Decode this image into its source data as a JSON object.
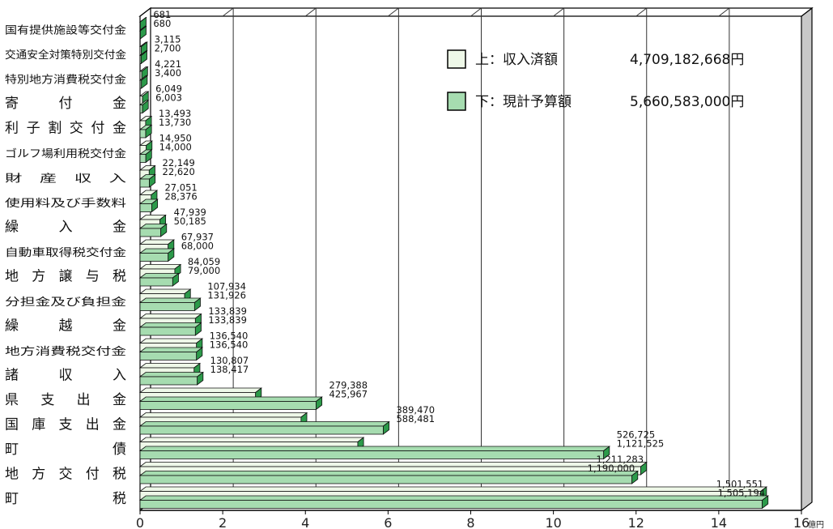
{
  "chart_data": {
    "type": "bar",
    "orientation": "horizontal",
    "bar_style": "3d",
    "unit_label": "億円",
    "xlim": [
      0,
      16
    ],
    "xticks": [
      "0",
      "2",
      "4",
      "6",
      "8",
      "10",
      "12",
      "14",
      "16"
    ],
    "grid": true,
    "legend_position": "top-right",
    "colors": {
      "received": "#eef8e8",
      "budget": "#a6dcb0",
      "side": "#2c9a4a",
      "plot_right_wall": "#c8c8c8",
      "frame": "#000000"
    },
    "legend": [
      {
        "series": "received",
        "position": "上",
        "name": "収入済額",
        "total": "4,709,182,668円"
      },
      {
        "series": "budget",
        "position": "下",
        "name": "現計予算額",
        "total": "5,660,583,000円"
      }
    ],
    "categories": [
      {
        "name": "国有提供施設等交付金",
        "received": 681,
        "budget": 680
      },
      {
        "name": "交通安全対策特別交付金",
        "received": 3115,
        "budget": 2700
      },
      {
        "name": "特別地方消費税交付金",
        "received": 4221,
        "budget": 3400
      },
      {
        "name": "寄　付　金",
        "received": 6049,
        "budget": 6003
      },
      {
        "name": "利子割交付金",
        "received": 13493,
        "budget": 13730
      },
      {
        "name": "ゴルフ場利用税交付金",
        "received": 14950,
        "budget": 14000
      },
      {
        "name": "財　産　収　入",
        "received": 22149,
        "budget": 22620
      },
      {
        "name": "使用料及び手数料",
        "received": 27051,
        "budget": 28376
      },
      {
        "name": "繰　入　金",
        "received": 47939,
        "budget": 50185
      },
      {
        "name": "自動車取得税交付金",
        "received": 67937,
        "budget": 68000
      },
      {
        "name": "地方譲与税",
        "received": 84059,
        "budget": 79000
      },
      {
        "name": "分担金及び負担金",
        "received": 107934,
        "budget": 131926
      },
      {
        "name": "繰　越　金",
        "received": 133839,
        "budget": 133839
      },
      {
        "name": "地方消費税交付金",
        "received": 136540,
        "budget": 136540
      },
      {
        "name": "諸　収　入",
        "received": 130807,
        "budget": 138417
      },
      {
        "name": "県支出金",
        "received": 279388,
        "budget": 425967
      },
      {
        "name": "国庫支出金",
        "received": 389470,
        "budget": 588481
      },
      {
        "name": "町　　債",
        "received": 526725,
        "budget": 1121525
      },
      {
        "name": "地方交付税",
        "received": 1211283,
        "budget": 1190000
      },
      {
        "name": "町　　税",
        "received": 1501551,
        "budget": 1505194
      }
    ],
    "value_labels": [
      {
        "text": "681"
      },
      {
        "text": "680"
      },
      {
        "text": "3,115"
      },
      {
        "text": "2,700"
      },
      {
        "text": "4,221"
      },
      {
        "text": "3,400"
      },
      {
        "text": "6,049"
      },
      {
        "text": "6,003"
      },
      {
        "text": "13,493"
      },
      {
        "text": "13,730"
      },
      {
        "text": "14,950"
      },
      {
        "text": "14,000"
      },
      {
        "text": "22,149"
      },
      {
        "text": "22,620"
      },
      {
        "text": "27,051"
      },
      {
        "text": "28,376"
      },
      {
        "text": "47,939"
      },
      {
        "text": "50,185"
      },
      {
        "text": "67,937"
      },
      {
        "text": "68,000"
      },
      {
        "text": "84,059"
      },
      {
        "text": "79,000"
      },
      {
        "text": "107,934"
      },
      {
        "text": "131,926"
      },
      {
        "text": "133,839"
      },
      {
        "text": "133,839"
      },
      {
        "text": "136,540"
      },
      {
        "text": "136,540"
      },
      {
        "text": "130,807"
      },
      {
        "text": "138,417"
      },
      {
        "text": "279,388"
      },
      {
        "text": "425,967"
      },
      {
        "text": "389,470"
      },
      {
        "text": "588,481"
      },
      {
        "text": "526,725"
      },
      {
        "text": "1,121,525"
      },
      {
        "text": "1,211,283"
      },
      {
        "text": "1,190,000"
      },
      {
        "text": "1,501,551"
      },
      {
        "text": "1,505,194"
      }
    ]
  }
}
